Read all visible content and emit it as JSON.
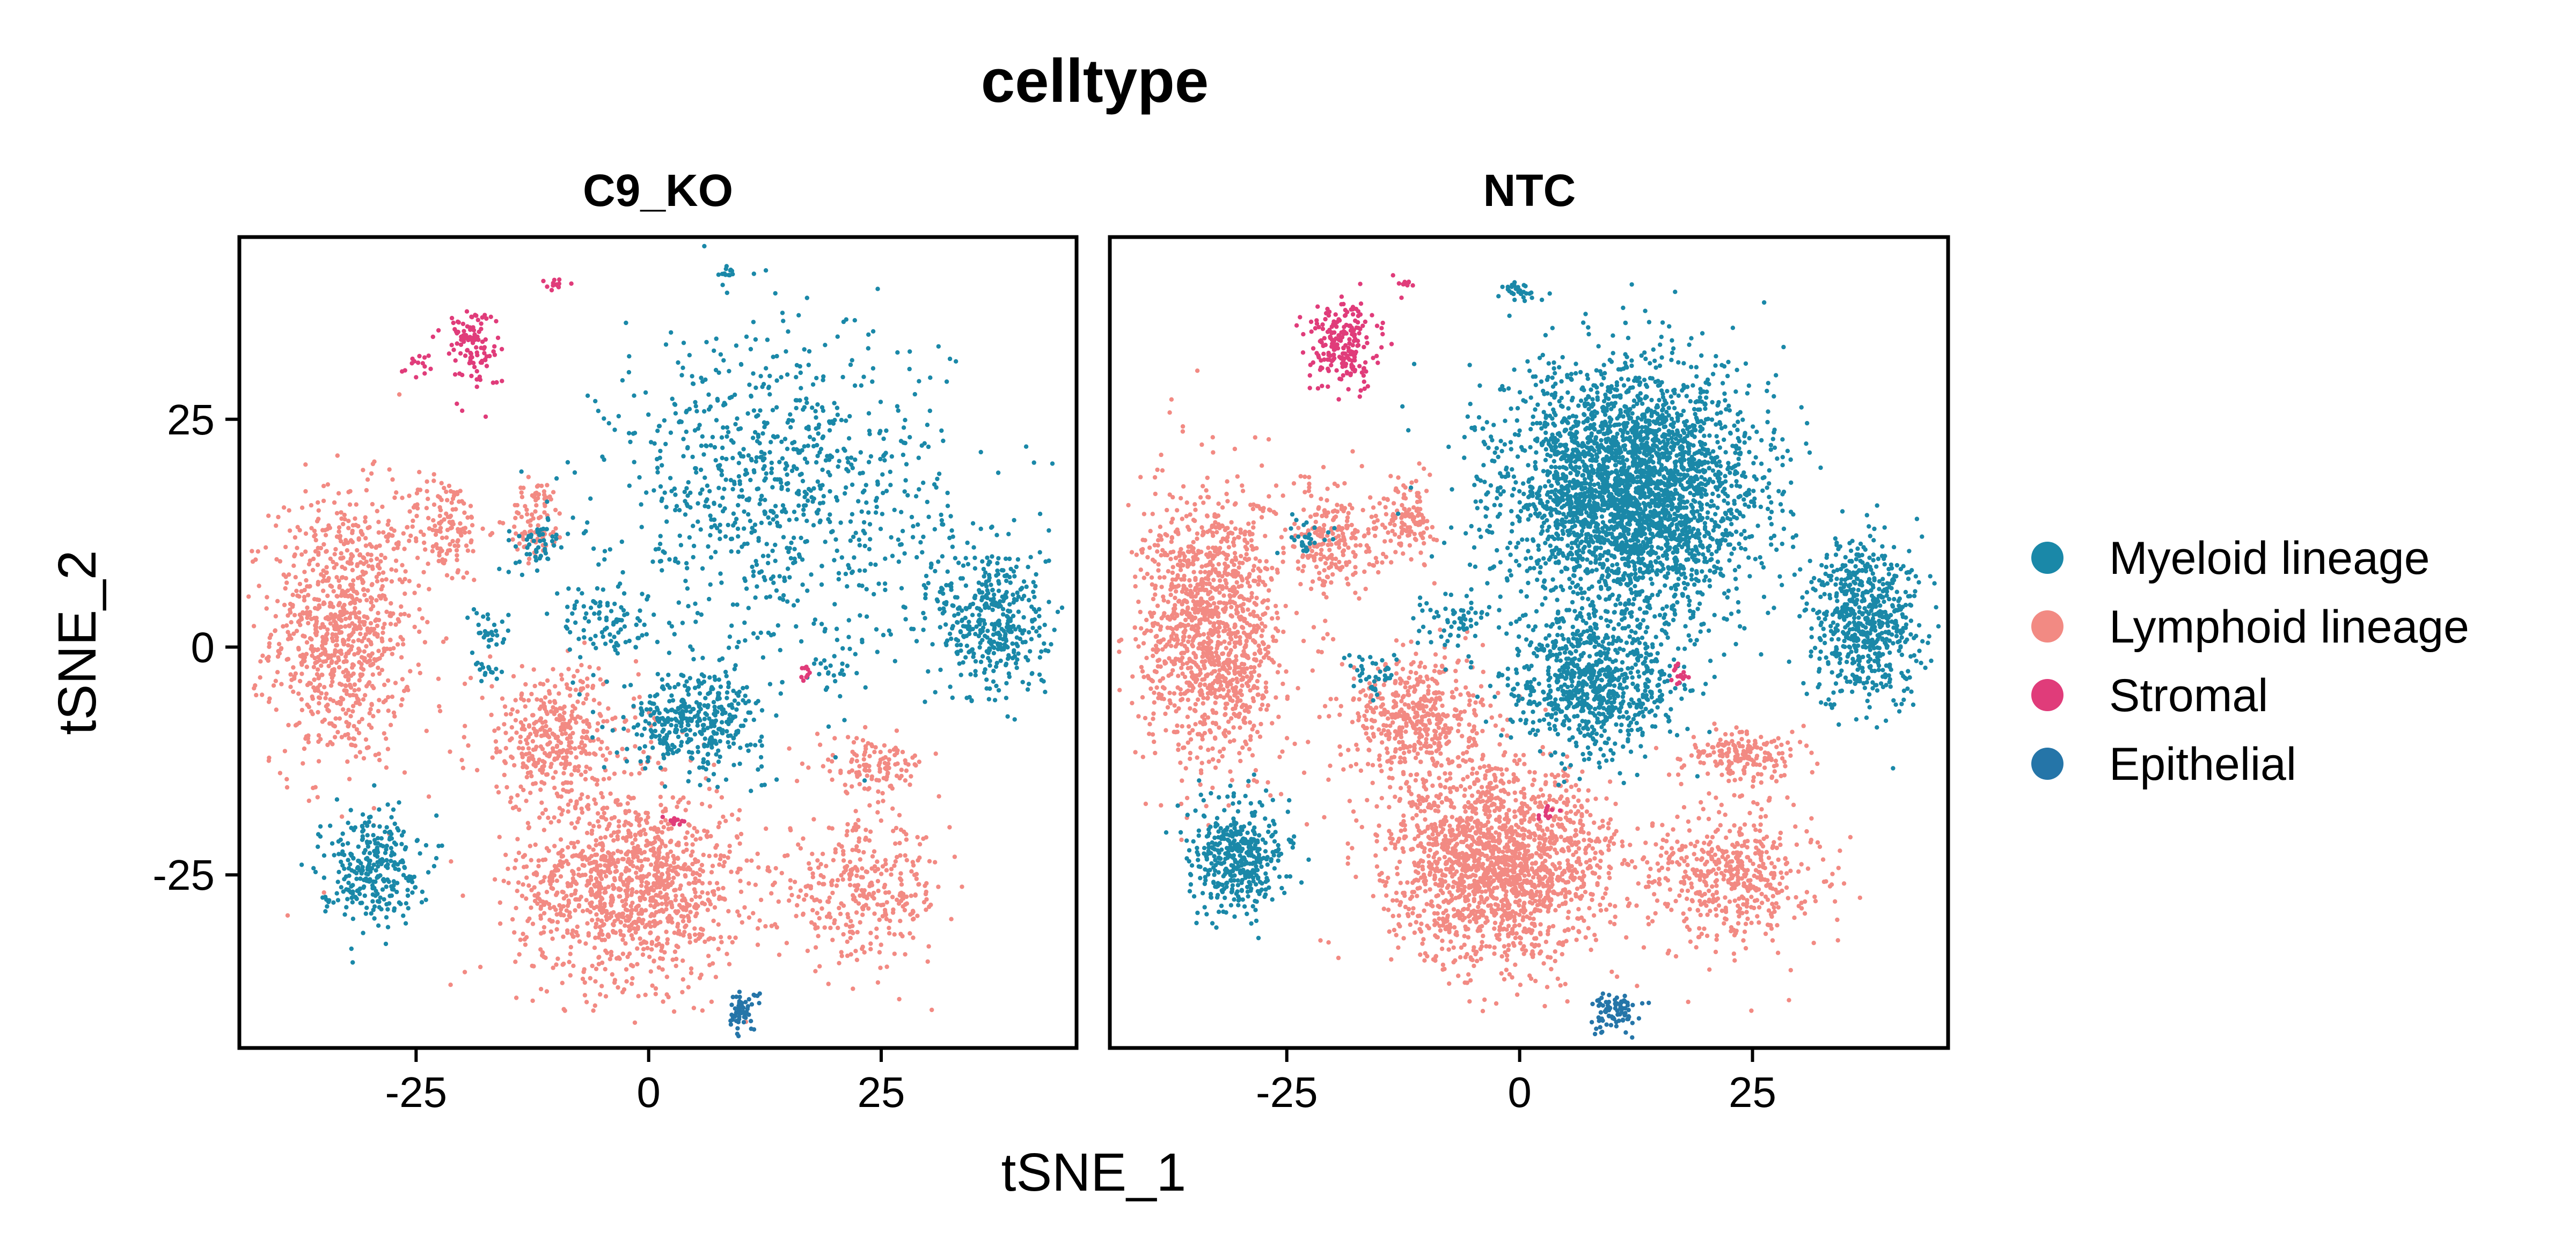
{
  "chart_data": {
    "type": "scatter",
    "title": "celltype",
    "xlabel": "tSNE_1",
    "ylabel": "tSNE_2",
    "xlim": [
      -44,
      46
    ],
    "ylim": [
      -44,
      45
    ],
    "xticks": [
      -25,
      0,
      25
    ],
    "yticks": [
      25,
      0,
      -25
    ],
    "xtick_labels": [
      "-25",
      "0",
      "25"
    ],
    "ytick_labels": [
      "25",
      "0",
      "-25"
    ],
    "grid": false,
    "legend_position": "right",
    "panels": [
      {
        "name": "C9_KO",
        "clusters": [
          {
            "series": "Myeloid lineage",
            "center": [
              14,
              17
            ],
            "spread": [
              12,
              12
            ],
            "n": 900
          },
          {
            "series": "Myeloid lineage",
            "center": [
              5,
              -8
            ],
            "spread": [
              5,
              3.5
            ],
            "n": 380
          },
          {
            "series": "Myeloid lineage",
            "center": [
              -5,
              3
            ],
            "spread": [
              3,
              3
            ],
            "n": 90
          },
          {
            "series": "Myeloid lineage",
            "center": [
              -12,
              11
            ],
            "spread": [
              2,
              2
            ],
            "n": 50
          },
          {
            "series": "Myeloid lineage",
            "center": [
              -17,
              2
            ],
            "spread": [
              1.5,
              1.5
            ],
            "n": 30
          },
          {
            "series": "Myeloid lineage",
            "center": [
              -17,
              -3
            ],
            "spread": [
              1.2,
              1.2
            ],
            "n": 15
          },
          {
            "series": "Myeloid lineage",
            "center": [
              20,
              -2
            ],
            "spread": [
              1.5,
              1.5
            ],
            "n": 20
          },
          {
            "series": "Myeloid lineage",
            "center": [
              8,
              41
            ],
            "spread": [
              0.6,
              0.6
            ],
            "n": 12
          },
          {
            "series": "Myeloid lineage",
            "center": [
              37,
              3
            ],
            "spread": [
              4,
              6
            ],
            "n": 420
          },
          {
            "series": "Myeloid lineage",
            "center": [
              -30,
              -24
            ],
            "spread": [
              3.5,
              4
            ],
            "n": 300
          },
          {
            "series": "Lymphoid lineage",
            "center": [
              -33,
              2
            ],
            "spread": [
              5,
              10
            ],
            "n": 900
          },
          {
            "series": "Lymphoid lineage",
            "center": [
              -22,
              13
            ],
            "spread": [
              3,
              4
            ],
            "n": 150
          },
          {
            "series": "Lymphoid lineage",
            "center": [
              -12,
              14
            ],
            "spread": [
              2,
              3
            ],
            "n": 90
          },
          {
            "series": "Lymphoid lineage",
            "center": [
              -2,
              -26
            ],
            "spread": [
              8,
              7
            ],
            "n": 1200
          },
          {
            "series": "Lymphoid lineage",
            "center": [
              -10,
              -10
            ],
            "spread": [
              6,
              5
            ],
            "n": 400
          },
          {
            "series": "Lymphoid lineage",
            "center": [
              23,
              -27
            ],
            "spread": [
              6,
              5
            ],
            "n": 350
          },
          {
            "series": "Lymphoid lineage",
            "center": [
              24,
              -13
            ],
            "spread": [
              4,
              2
            ],
            "n": 120
          },
          {
            "series": "Stromal",
            "center": [
              -19,
              33
            ],
            "spread": [
              2,
              3
            ],
            "n": 110
          },
          {
            "series": "Stromal",
            "center": [
              -25,
              31
            ],
            "spread": [
              1,
              1
            ],
            "n": 14
          },
          {
            "series": "Stromal",
            "center": [
              -10,
              40
            ],
            "spread": [
              1.2,
              0.4
            ],
            "n": 12
          },
          {
            "series": "Stromal",
            "center": [
              17,
              -3
            ],
            "spread": [
              0.5,
              0.7
            ],
            "n": 10
          },
          {
            "series": "Stromal",
            "center": [
              3,
              -19
            ],
            "spread": [
              0.8,
              0.4
            ],
            "n": 10
          },
          {
            "series": "Epithelial",
            "center": [
              10,
              -40
            ],
            "spread": [
              1.2,
              1.5
            ],
            "n": 60
          }
        ]
      },
      {
        "name": "NTC",
        "clusters": [
          {
            "series": "Myeloid lineage",
            "center": [
              12,
              17
            ],
            "spread": [
              9,
              9
            ],
            "n": 3200
          },
          {
            "series": "Myeloid lineage",
            "center": [
              8,
              -4
            ],
            "spread": [
              6,
              5
            ],
            "n": 800
          },
          {
            "series": "Myeloid lineage",
            "center": [
              -7,
              3
            ],
            "spread": [
              2.5,
              2
            ],
            "n": 60
          },
          {
            "series": "Myeloid lineage",
            "center": [
              -16,
              -3
            ],
            "spread": [
              1.5,
              1.5
            ],
            "n": 40
          },
          {
            "series": "Myeloid lineage",
            "center": [
              -23,
              12
            ],
            "spread": [
              1.5,
              1.5
            ],
            "n": 30
          },
          {
            "series": "Myeloid lineage",
            "center": [
              0,
              39
            ],
            "spread": [
              1.5,
              0.8
            ],
            "n": 30
          },
          {
            "series": "Myeloid lineage",
            "center": [
              37,
              3
            ],
            "spread": [
              4,
              6
            ],
            "n": 650
          },
          {
            "series": "Myeloid lineage",
            "center": [
              -30,
              -23
            ],
            "spread": [
              3.5,
              4
            ],
            "n": 420
          },
          {
            "series": "Lymphoid lineage",
            "center": [
              -33,
              2
            ],
            "spread": [
              5,
              10
            ],
            "n": 1300
          },
          {
            "series": "Lymphoid lineage",
            "center": [
              -20,
              12
            ],
            "spread": [
              3,
              4
            ],
            "n": 220
          },
          {
            "series": "Lymphoid lineage",
            "center": [
              -12,
              14
            ],
            "spread": [
              2,
              3
            ],
            "n": 130
          },
          {
            "series": "Lymphoid lineage",
            "center": [
              -2,
              -24
            ],
            "spread": [
              8,
              7
            ],
            "n": 1800
          },
          {
            "series": "Lymphoid lineage",
            "center": [
              -11,
              -8
            ],
            "spread": [
              5,
              5
            ],
            "n": 500
          },
          {
            "series": "Lymphoid lineage",
            "center": [
              23,
              -25
            ],
            "spread": [
              6,
              5
            ],
            "n": 500
          },
          {
            "series": "Lymphoid lineage",
            "center": [
              24,
              -12
            ],
            "spread": [
              4,
              2
            ],
            "n": 180
          },
          {
            "series": "Stromal",
            "center": [
              -19,
              33
            ],
            "spread": [
              2.5,
              3
            ],
            "n": 220
          },
          {
            "series": "Stromal",
            "center": [
              -12,
              40
            ],
            "spread": [
              1,
              0.4
            ],
            "n": 10
          },
          {
            "series": "Stromal",
            "center": [
              17,
              -3
            ],
            "spread": [
              0.6,
              0.8
            ],
            "n": 15
          },
          {
            "series": "Stromal",
            "center": [
              3,
              -18
            ],
            "spread": [
              0.8,
              0.6
            ],
            "n": 12
          },
          {
            "series": "Epithelial",
            "center": [
              10,
              -40
            ],
            "spread": [
              1.5,
              1.5
            ],
            "n": 80
          }
        ]
      }
    ],
    "series": [
      {
        "name": "Myeloid lineage",
        "color": "#1A88A8"
      },
      {
        "name": "Lymphoid lineage",
        "color": "#F28A83"
      },
      {
        "name": "Stromal",
        "color": "#E03C7A"
      },
      {
        "name": "Epithelial",
        "color": "#2575A8"
      }
    ]
  }
}
